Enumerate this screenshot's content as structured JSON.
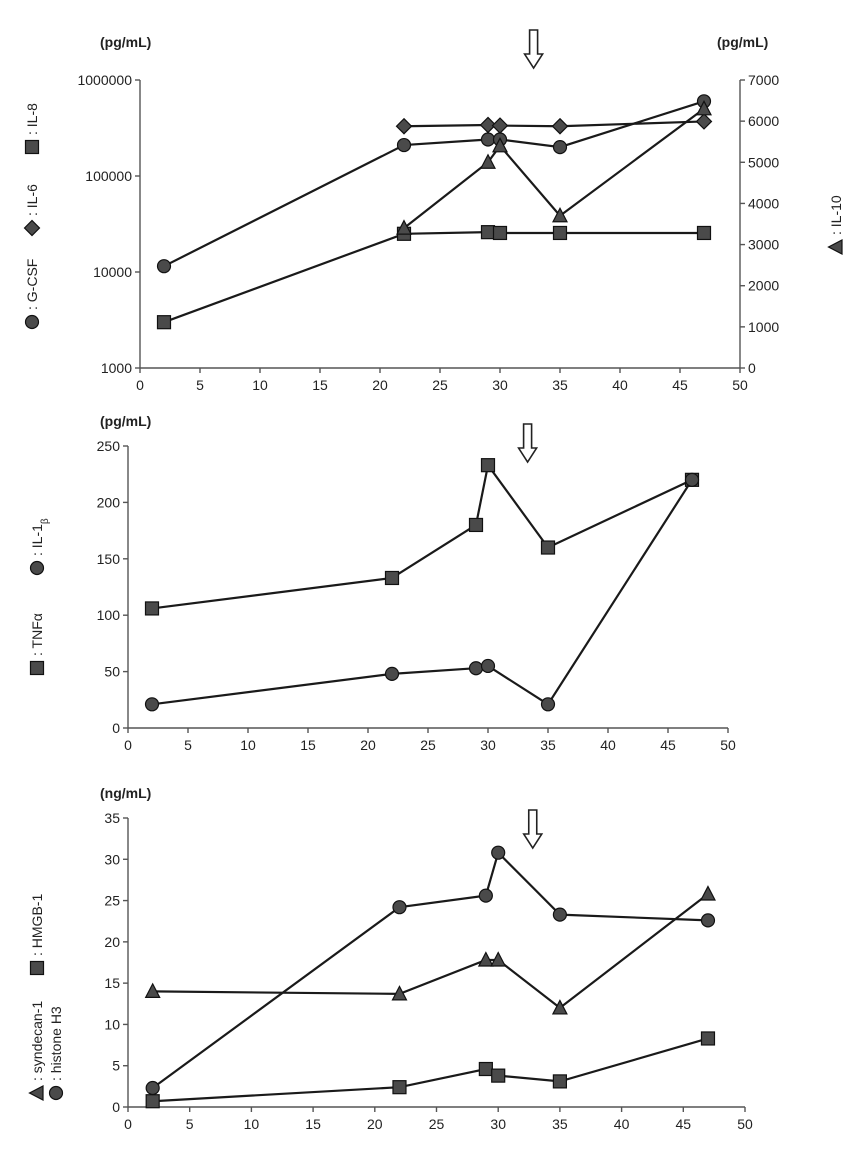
{
  "chart_data": [
    {
      "type": "line",
      "panel": "top",
      "ylabel_left": "(pg/mL)",
      "ylabel_right": "(pg/mL)",
      "left_axis": {
        "scale": "log",
        "ylim": [
          1000,
          1000000
        ],
        "ticks": [
          "1000",
          "10000",
          "100000",
          "1000000"
        ]
      },
      "right_axis": {
        "scale": "linear",
        "ylim": [
          0,
          7000
        ],
        "ticks": [
          "0",
          "1000",
          "2000",
          "3000",
          "4000",
          "5000",
          "6000",
          "7000"
        ]
      },
      "xlim": [
        0,
        50
      ],
      "xticks": [
        "0",
        "5",
        "10",
        "15",
        "20",
        "25",
        "30",
        "35",
        "40",
        "45",
        "50"
      ],
      "arrow_x": 32.8,
      "series": [
        {
          "name": ": IL-8",
          "marker": "square",
          "axis": "left",
          "x": [
            2,
            22,
            29,
            30,
            35,
            47
          ],
          "y": [
            3000,
            25000,
            26000,
            25500,
            25500,
            25500
          ]
        },
        {
          "name": ": IL-6",
          "marker": "diamond",
          "axis": "left",
          "x": [
            22,
            29,
            30,
            35,
            47
          ],
          "y": [
            330000,
            340000,
            335000,
            330000,
            370000
          ]
        },
        {
          "name": ": G-CSF",
          "marker": "circle",
          "axis": "left",
          "x": [
            2,
            22,
            29,
            30,
            35,
            47
          ],
          "y": [
            11500,
            210000,
            240000,
            240000,
            200000,
            600000
          ]
        },
        {
          "name": ": IL-10",
          "marker": "triangle",
          "axis": "right",
          "x": [
            22,
            29,
            30,
            35,
            47
          ],
          "y": [
            3400,
            5000,
            5400,
            3700,
            6300
          ]
        }
      ]
    },
    {
      "type": "line",
      "panel": "middle",
      "ylabel": "(pg/mL)",
      "ylim": [
        0,
        250
      ],
      "yticks": [
        "0",
        "50",
        "100",
        "150",
        "200",
        "250"
      ],
      "xlim": [
        0,
        50
      ],
      "xticks": [
        "0",
        "5",
        "10",
        "15",
        "20",
        "25",
        "30",
        "35",
        "40",
        "45",
        "50"
      ],
      "arrow_x": 33.3,
      "series": [
        {
          "name": ": TNFα",
          "marker": "square",
          "x": [
            2,
            22,
            29,
            30,
            35,
            47
          ],
          "y": [
            106,
            133,
            180,
            233,
            160,
            220
          ]
        },
        {
          "name": ": IL-1",
          "name_sub": "β",
          "marker": "circle",
          "x": [
            2,
            22,
            29,
            30,
            35,
            47
          ],
          "y": [
            21,
            48,
            53,
            55,
            21,
            220
          ]
        }
      ]
    },
    {
      "type": "line",
      "panel": "bottom",
      "ylabel": "(ng/mL)",
      "ylim": [
        0,
        35
      ],
      "yticks": [
        "0",
        "5",
        "10",
        "15",
        "20",
        "25",
        "30",
        "35"
      ],
      "xlim": [
        0,
        50
      ],
      "xticks": [
        "0",
        "5",
        "10",
        "15",
        "20",
        "25",
        "30",
        "35",
        "40",
        "45",
        "50"
      ],
      "arrow_x": 32.8,
      "series": [
        {
          "name": ": HMGB-1",
          "marker": "square",
          "x": [
            2,
            22,
            29,
            30,
            35,
            47
          ],
          "y": [
            0.7,
            2.4,
            4.6,
            3.8,
            3.1,
            8.3
          ]
        },
        {
          "name": ": syndecan-1",
          "marker": "triangle",
          "x": [
            2,
            22,
            29,
            30,
            35,
            47
          ],
          "y": [
            14,
            13.7,
            17.8,
            17.8,
            12,
            25.8
          ]
        },
        {
          "name": ": histone H3",
          "marker": "circle",
          "x": [
            2,
            22,
            29,
            30,
            35,
            47
          ],
          "y": [
            2.3,
            24.2,
            25.6,
            30.8,
            23.3,
            22.6
          ]
        }
      ]
    }
  ]
}
